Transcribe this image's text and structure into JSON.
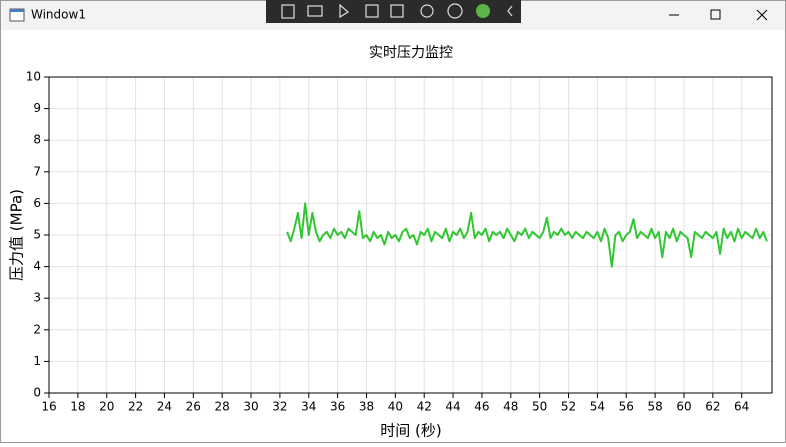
{
  "window": {
    "title": "Window1"
  },
  "chart_data": {
    "type": "line",
    "title": "实时压力监控",
    "x_label": "时间 (秒)",
    "y_label": "压力值 (MPa)",
    "color": "#33c633",
    "grid": true,
    "xlim": [
      16,
      66.1
    ],
    "ylim": [
      0,
      10
    ],
    "xticks": [
      16,
      18,
      20,
      22,
      24,
      26,
      28,
      30,
      32,
      34,
      36,
      38,
      40,
      42,
      44,
      46,
      48,
      50,
      52,
      54,
      56,
      58,
      60,
      62,
      64
    ],
    "yticks": [
      0,
      1,
      2,
      3,
      4,
      5,
      6,
      7,
      8,
      9,
      10
    ],
    "x": [
      32.5,
      32.75,
      33,
      33.25,
      33.5,
      33.75,
      34,
      34.25,
      34.5,
      34.75,
      35,
      35.25,
      35.5,
      35.75,
      36,
      36.25,
      36.5,
      36.75,
      37,
      37.25,
      37.5,
      37.75,
      38,
      38.25,
      38.5,
      38.75,
      39,
      39.25,
      39.5,
      39.75,
      40,
      40.25,
      40.5,
      40.75,
      41,
      41.25,
      41.5,
      41.75,
      42,
      42.25,
      42.5,
      42.75,
      43,
      43.25,
      43.5,
      43.75,
      44,
      44.25,
      44.5,
      44.75,
      45,
      45.25,
      45.5,
      45.75,
      46,
      46.25,
      46.5,
      46.75,
      47,
      47.25,
      47.5,
      47.75,
      48,
      48.25,
      48.5,
      48.75,
      49,
      49.25,
      49.5,
      49.75,
      50,
      50.25,
      50.5,
      50.75,
      51,
      51.25,
      51.5,
      51.75,
      52,
      52.25,
      52.5,
      52.75,
      53,
      53.25,
      53.5,
      53.75,
      54,
      54.25,
      54.5,
      54.75,
      55,
      55.25,
      55.5,
      55.75,
      56,
      56.25,
      56.5,
      56.75,
      57,
      57.25,
      57.5,
      57.75,
      58,
      58.25,
      58.5,
      58.75,
      59,
      59.25,
      59.5,
      59.75,
      60,
      60.25,
      60.5,
      60.75,
      61,
      61.25,
      61.5,
      61.75,
      62,
      62.25,
      62.5,
      62.75,
      63,
      63.25,
      63.5,
      63.75,
      64,
      64.25,
      64.5,
      64.75,
      65,
      65.25,
      65.5,
      65.75
    ],
    "values": [
      5.1,
      4.8,
      5.2,
      5.7,
      4.9,
      6.0,
      5.0,
      5.7,
      5.1,
      4.8,
      5.0,
      5.1,
      4.9,
      5.2,
      5.0,
      5.1,
      4.9,
      5.2,
      5.1,
      5.0,
      5.75,
      4.9,
      5.0,
      4.8,
      5.1,
      4.9,
      5.0,
      4.7,
      5.1,
      4.9,
      5.0,
      4.8,
      5.1,
      5.2,
      4.9,
      5.0,
      4.7,
      5.1,
      5.0,
      5.2,
      4.8,
      5.1,
      5.0,
      4.9,
      5.2,
      4.8,
      5.1,
      5.0,
      5.2,
      4.9,
      5.1,
      5.7,
      4.9,
      5.1,
      5.0,
      5.2,
      4.8,
      5.1,
      5.0,
      5.1,
      4.9,
      5.2,
      5.0,
      4.8,
      5.1,
      5.0,
      5.2,
      4.9,
      5.1,
      5.0,
      4.9,
      5.1,
      5.55,
      4.9,
      5.1,
      5.0,
      5.2,
      5.0,
      5.1,
      4.9,
      5.1,
      5.0,
      4.9,
      5.1,
      5.0,
      4.9,
      5.1,
      4.8,
      5.2,
      4.9,
      4.0,
      5.0,
      5.1,
      4.8,
      5.0,
      5.1,
      5.5,
      4.9,
      5.1,
      5.0,
      4.9,
      5.2,
      4.9,
      5.1,
      4.3,
      5.1,
      4.9,
      5.2,
      4.8,
      5.1,
      5.0,
      4.9,
      4.3,
      5.1,
      5.0,
      4.9,
      5.1,
      5.0,
      4.9,
      5.1,
      4.4,
      5.2,
      4.9,
      5.1,
      4.8,
      5.2,
      4.9,
      5.1,
      5.0,
      4.9,
      5.2,
      4.9,
      5.1,
      4.8
    ]
  }
}
